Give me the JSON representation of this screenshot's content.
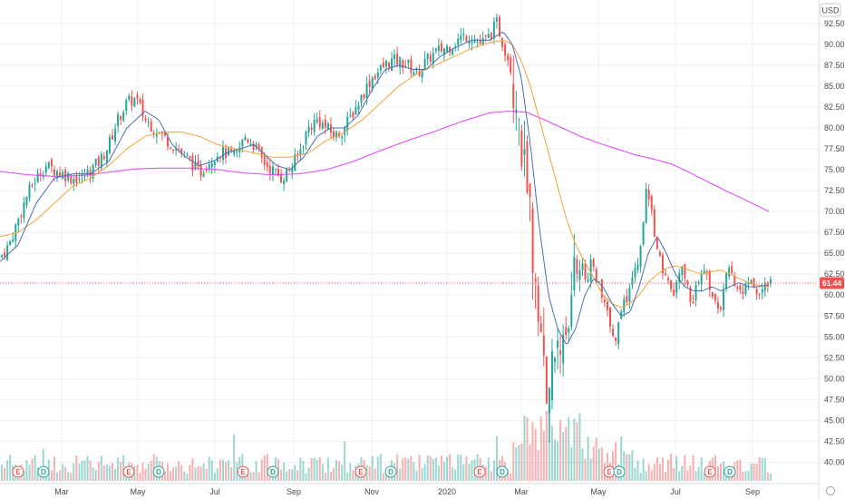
{
  "chart_data": {
    "type": "candlestick",
    "currency": "USD",
    "last_price": "61.44",
    "y_ticks": [
      "92.50",
      "90.00",
      "87.50",
      "85.00",
      "82.50",
      "80.00",
      "77.50",
      "75.00",
      "72.50",
      "70.00",
      "67.50",
      "65.00",
      "62.50",
      "60.00",
      "57.50",
      "55.00",
      "52.50",
      "50.00",
      "47.50",
      "45.00",
      "42.50",
      "40.00"
    ],
    "ylim": [
      38.75,
      94.0
    ],
    "month_labels": [
      "Mar",
      "May",
      "Jul",
      "Sep",
      "Nov",
      "2020",
      "Mar",
      "May",
      "Jul",
      "Sep"
    ],
    "events": [
      {
        "label": "E",
        "kind": "earnings"
      },
      {
        "label": "D",
        "kind": "dividend"
      },
      {
        "label": "E",
        "kind": "earnings"
      },
      {
        "label": "D",
        "kind": "dividend"
      },
      {
        "label": "E",
        "kind": "earnings"
      },
      {
        "label": "D",
        "kind": "dividend"
      },
      {
        "label": "E",
        "kind": "earnings"
      },
      {
        "label": "D",
        "kind": "dividend"
      },
      {
        "label": "E",
        "kind": "earnings"
      },
      {
        "label": "D",
        "kind": "dividend"
      },
      {
        "label": "E",
        "kind": "earnings"
      },
      {
        "label": "D",
        "kind": "dividend"
      },
      {
        "label": "E",
        "kind": "earnings"
      },
      {
        "label": "D",
        "kind": "dividend"
      }
    ],
    "price_anchors": [
      [
        0,
        64.5
      ],
      [
        10,
        66
      ],
      [
        20,
        69
      ],
      [
        30,
        72
      ],
      [
        40,
        74
      ],
      [
        50,
        75.5
      ],
      [
        60,
        75
      ],
      [
        70,
        74.5
      ],
      [
        80,
        74
      ],
      [
        90,
        74
      ],
      [
        100,
        75
      ],
      [
        110,
        76
      ],
      [
        120,
        78
      ],
      [
        130,
        81
      ],
      [
        140,
        83
      ],
      [
        150,
        83.5
      ],
      [
        160,
        81
      ],
      [
        170,
        80
      ],
      [
        180,
        79
      ],
      [
        190,
        78
      ],
      [
        200,
        77
      ],
      [
        210,
        76
      ],
      [
        220,
        74.5
      ],
      [
        230,
        76
      ],
      [
        240,
        77
      ],
      [
        250,
        77
      ],
      [
        260,
        76.5
      ],
      [
        270,
        79
      ],
      [
        280,
        78
      ],
      [
        290,
        76
      ],
      [
        300,
        75
      ],
      [
        310,
        74
      ],
      [
        320,
        75
      ],
      [
        330,
        77
      ],
      [
        340,
        80
      ],
      [
        350,
        81
      ],
      [
        360,
        80
      ],
      [
        370,
        79
      ],
      [
        380,
        80
      ],
      [
        390,
        82
      ],
      [
        400,
        84
      ],
      [
        410,
        86
      ],
      [
        420,
        87
      ],
      [
        430,
        88
      ],
      [
        440,
        88
      ],
      [
        450,
        87.5
      ],
      [
        460,
        86.5
      ],
      [
        470,
        88
      ],
      [
        480,
        89
      ],
      [
        490,
        89.5
      ],
      [
        500,
        90
      ],
      [
        510,
        91
      ],
      [
        520,
        91
      ],
      [
        530,
        90
      ],
      [
        540,
        91
      ],
      [
        548,
        92.5
      ],
      [
        555,
        90
      ],
      [
        562,
        88
      ],
      [
        568,
        84
      ],
      [
        572,
        80
      ],
      [
        577,
        76
      ],
      [
        582,
        72
      ],
      [
        587,
        66
      ],
      [
        592,
        60
      ],
      [
        597,
        54
      ],
      [
        602,
        50
      ],
      [
        606,
        47
      ],
      [
        610,
        52
      ],
      [
        615,
        56
      ],
      [
        620,
        54
      ],
      [
        624,
        52
      ],
      [
        628,
        58
      ],
      [
        633,
        62
      ],
      [
        638,
        64
      ],
      [
        643,
        63
      ],
      [
        648,
        62
      ],
      [
        653,
        64
      ],
      [
        658,
        62
      ],
      [
        663,
        60
      ],
      [
        668,
        58
      ],
      [
        673,
        57
      ],
      [
        678,
        54
      ],
      [
        682,
        56
      ],
      [
        688,
        59
      ],
      [
        693,
        60
      ],
      [
        698,
        62
      ],
      [
        703,
        64
      ],
      [
        708,
        66
      ],
      [
        713,
        73
      ],
      [
        718,
        70
      ],
      [
        723,
        67
      ],
      [
        728,
        64
      ],
      [
        733,
        62
      ],
      [
        738,
        61
      ],
      [
        743,
        60
      ],
      [
        748,
        62
      ],
      [
        753,
        63
      ],
      [
        758,
        61
      ],
      [
        763,
        59
      ],
      [
        768,
        61
      ],
      [
        773,
        62
      ],
      [
        778,
        63
      ],
      [
        783,
        61
      ],
      [
        788,
        59
      ],
      [
        793,
        58
      ],
      [
        798,
        60
      ],
      [
        803,
        63
      ],
      [
        808,
        62
      ],
      [
        813,
        61
      ],
      [
        818,
        60
      ],
      [
        823,
        61
      ],
      [
        828,
        62
      ],
      [
        833,
        61
      ],
      [
        838,
        60
      ],
      [
        843,
        61
      ],
      [
        848,
        61.4
      ]
    ],
    "ma_fast_anchors": [
      [
        0,
        64
      ],
      [
        20,
        66
      ],
      [
        40,
        71
      ],
      [
        60,
        74
      ],
      [
        80,
        74.5
      ],
      [
        100,
        74.5
      ],
      [
        120,
        76
      ],
      [
        140,
        80
      ],
      [
        160,
        82
      ],
      [
        175,
        81
      ],
      [
        190,
        78
      ],
      [
        205,
        76.5
      ],
      [
        220,
        75.5
      ],
      [
        235,
        76
      ],
      [
        250,
        77
      ],
      [
        265,
        77.5
      ],
      [
        280,
        78
      ],
      [
        290,
        77
      ],
      [
        305,
        75.5
      ],
      [
        320,
        75
      ],
      [
        335,
        76.5
      ],
      [
        350,
        79
      ],
      [
        365,
        80
      ],
      [
        380,
        80
      ],
      [
        395,
        81.5
      ],
      [
        410,
        84.5
      ],
      [
        425,
        87
      ],
      [
        440,
        87.5
      ],
      [
        455,
        87
      ],
      [
        470,
        87
      ],
      [
        485,
        88.5
      ],
      [
        500,
        89.5
      ],
      [
        520,
        90.5
      ],
      [
        540,
        90.5
      ],
      [
        555,
        91.5
      ],
      [
        565,
        90
      ],
      [
        575,
        86
      ],
      [
        585,
        78
      ],
      [
        595,
        68
      ],
      [
        605,
        60
      ],
      [
        615,
        56
      ],
      [
        625,
        54
      ],
      [
        635,
        56
      ],
      [
        645,
        60
      ],
      [
        655,
        62
      ],
      [
        665,
        61
      ],
      [
        675,
        59
      ],
      [
        685,
        57.5
      ],
      [
        695,
        58
      ],
      [
        705,
        61
      ],
      [
        715,
        65
      ],
      [
        725,
        67
      ],
      [
        735,
        65
      ],
      [
        745,
        62.5
      ],
      [
        755,
        61
      ],
      [
        765,
        60.5
      ],
      [
        775,
        60.5
      ],
      [
        785,
        61
      ],
      [
        795,
        60.5
      ],
      [
        805,
        61
      ],
      [
        815,
        61.5
      ],
      [
        825,
        61
      ],
      [
        835,
        61
      ],
      [
        848,
        61.2
      ]
    ],
    "ma_mid_anchors": [
      [
        0,
        67
      ],
      [
        20,
        67.5
      ],
      [
        40,
        69
      ],
      [
        60,
        71
      ],
      [
        80,
        73
      ],
      [
        100,
        74
      ],
      [
        120,
        75.5
      ],
      [
        140,
        77.5
      ],
      [
        160,
        79
      ],
      [
        180,
        79.5
      ],
      [
        200,
        79.5
      ],
      [
        220,
        79
      ],
      [
        240,
        78
      ],
      [
        260,
        77.5
      ],
      [
        280,
        77
      ],
      [
        300,
        76.5
      ],
      [
        320,
        76.5
      ],
      [
        340,
        77
      ],
      [
        360,
        78.5
      ],
      [
        380,
        79.5
      ],
      [
        400,
        81
      ],
      [
        420,
        83
      ],
      [
        440,
        85
      ],
      [
        460,
        86.5
      ],
      [
        480,
        87.5
      ],
      [
        500,
        88.5
      ],
      [
        520,
        89.5
      ],
      [
        540,
        90.2
      ],
      [
        555,
        90.5
      ],
      [
        565,
        90
      ],
      [
        575,
        88
      ],
      [
        585,
        85
      ],
      [
        595,
        81
      ],
      [
        605,
        77
      ],
      [
        615,
        73
      ],
      [
        625,
        69
      ],
      [
        635,
        66
      ],
      [
        645,
        64
      ],
      [
        655,
        62
      ],
      [
        665,
        60
      ],
      [
        675,
        59
      ],
      [
        685,
        58.5
      ],
      [
        695,
        59
      ],
      [
        705,
        60
      ],
      [
        715,
        61.5
      ],
      [
        725,
        62.5
      ],
      [
        735,
        63.2
      ],
      [
        745,
        63.5
      ],
      [
        755,
        63.2
      ],
      [
        765,
        62.8
      ],
      [
        775,
        62.5
      ],
      [
        785,
        62.8
      ],
      [
        795,
        63
      ],
      [
        805,
        62.5
      ],
      [
        815,
        62
      ],
      [
        825,
        61.5
      ],
      [
        835,
        61.2
      ],
      [
        848,
        61
      ]
    ],
    "ma_slow_anchors": [
      [
        0,
        74.8
      ],
      [
        30,
        74.4
      ],
      [
        60,
        74.2
      ],
      [
        90,
        74.3
      ],
      [
        120,
        74.7
      ],
      [
        150,
        75.1
      ],
      [
        180,
        75.2
      ],
      [
        210,
        75.2
      ],
      [
        240,
        75.0
      ],
      [
        270,
        74.6
      ],
      [
        300,
        74.4
      ],
      [
        330,
        74.5
      ],
      [
        360,
        75.0
      ],
      [
        390,
        76.0
      ],
      [
        420,
        77.3
      ],
      [
        450,
        78.5
      ],
      [
        480,
        79.6
      ],
      [
        510,
        80.8
      ],
      [
        540,
        81.8
      ],
      [
        560,
        82.0
      ],
      [
        580,
        81.9
      ],
      [
        600,
        81.0
      ],
      [
        620,
        80.0
      ],
      [
        640,
        79.0
      ],
      [
        660,
        78.2
      ],
      [
        680,
        77.5
      ],
      [
        700,
        76.8
      ],
      [
        720,
        76.3
      ],
      [
        740,
        75.7
      ],
      [
        760,
        74.7
      ],
      [
        780,
        73.6
      ],
      [
        800,
        72.5
      ],
      [
        820,
        71.5
      ],
      [
        835,
        70.7
      ],
      [
        848,
        70.0
      ]
    ]
  },
  "colors": {
    "up": "#26a69a",
    "down": "#ef5350",
    "ma_fast": "#4a6fb3",
    "ma_mid": "#f2a33a",
    "ma_slow": "#e040fb",
    "grid": "#eef0f3",
    "price_line": "#ef5350",
    "axis_text": "#4a4a4a"
  }
}
